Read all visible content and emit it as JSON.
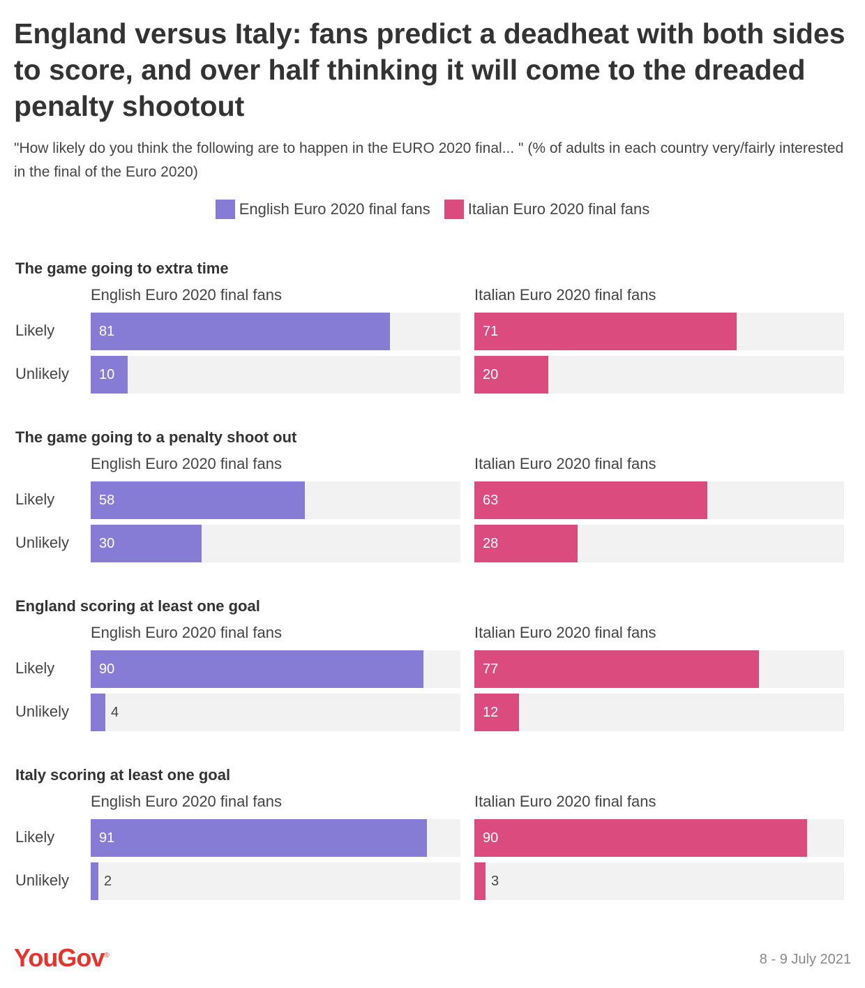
{
  "title": "England versus Italy: fans predict a deadheat with both sides to score, and over half thinking it will come to the dreaded penalty shootout",
  "subtitle": "\"How likely do you think the following are to happen in the EURO 2020 final... \" (% of adults in each country very/fairly interested in the final of the Euro 2020)",
  "legend": [
    {
      "label": "English Euro 2020 final fans",
      "color": "#877cd5"
    },
    {
      "label": "Italian Euro 2020 final fans",
      "color": "#dc4b7e"
    }
  ],
  "chart_data": {
    "type": "bar",
    "orientation": "horizontal",
    "xlim": [
      0,
      100
    ],
    "categories": [
      "Likely",
      "Unlikely"
    ],
    "panels": [
      "English Euro 2020 final fans",
      "Italian Euro 2020 final fans"
    ],
    "colors": [
      "#877cd5",
      "#dc4b7e"
    ],
    "groups": [
      {
        "title": "The game going to extra time",
        "series": [
          {
            "name": "English Euro 2020 final fans",
            "values": [
              81,
              10
            ]
          },
          {
            "name": "Italian Euro 2020 final fans",
            "values": [
              71,
              20
            ]
          }
        ]
      },
      {
        "title": "The game going to a penalty shoot out",
        "series": [
          {
            "name": "English Euro 2020 final fans",
            "values": [
              58,
              30
            ]
          },
          {
            "name": "Italian Euro 2020 final fans",
            "values": [
              63,
              28
            ]
          }
        ]
      },
      {
        "title": "England scoring at least one goal",
        "series": [
          {
            "name": "English Euro 2020 final fans",
            "values": [
              90,
              4
            ]
          },
          {
            "name": "Italian Euro 2020 final fans",
            "values": [
              77,
              12
            ]
          }
        ]
      },
      {
        "title": "Italy scoring at least one goal",
        "series": [
          {
            "name": "English Euro 2020 final fans",
            "values": [
              91,
              2
            ]
          },
          {
            "name": "Italian Euro 2020 final fans",
            "values": [
              90,
              3
            ]
          }
        ]
      }
    ]
  },
  "footer": {
    "logo": "YouGov",
    "date": "8 - 9 July 2021"
  }
}
